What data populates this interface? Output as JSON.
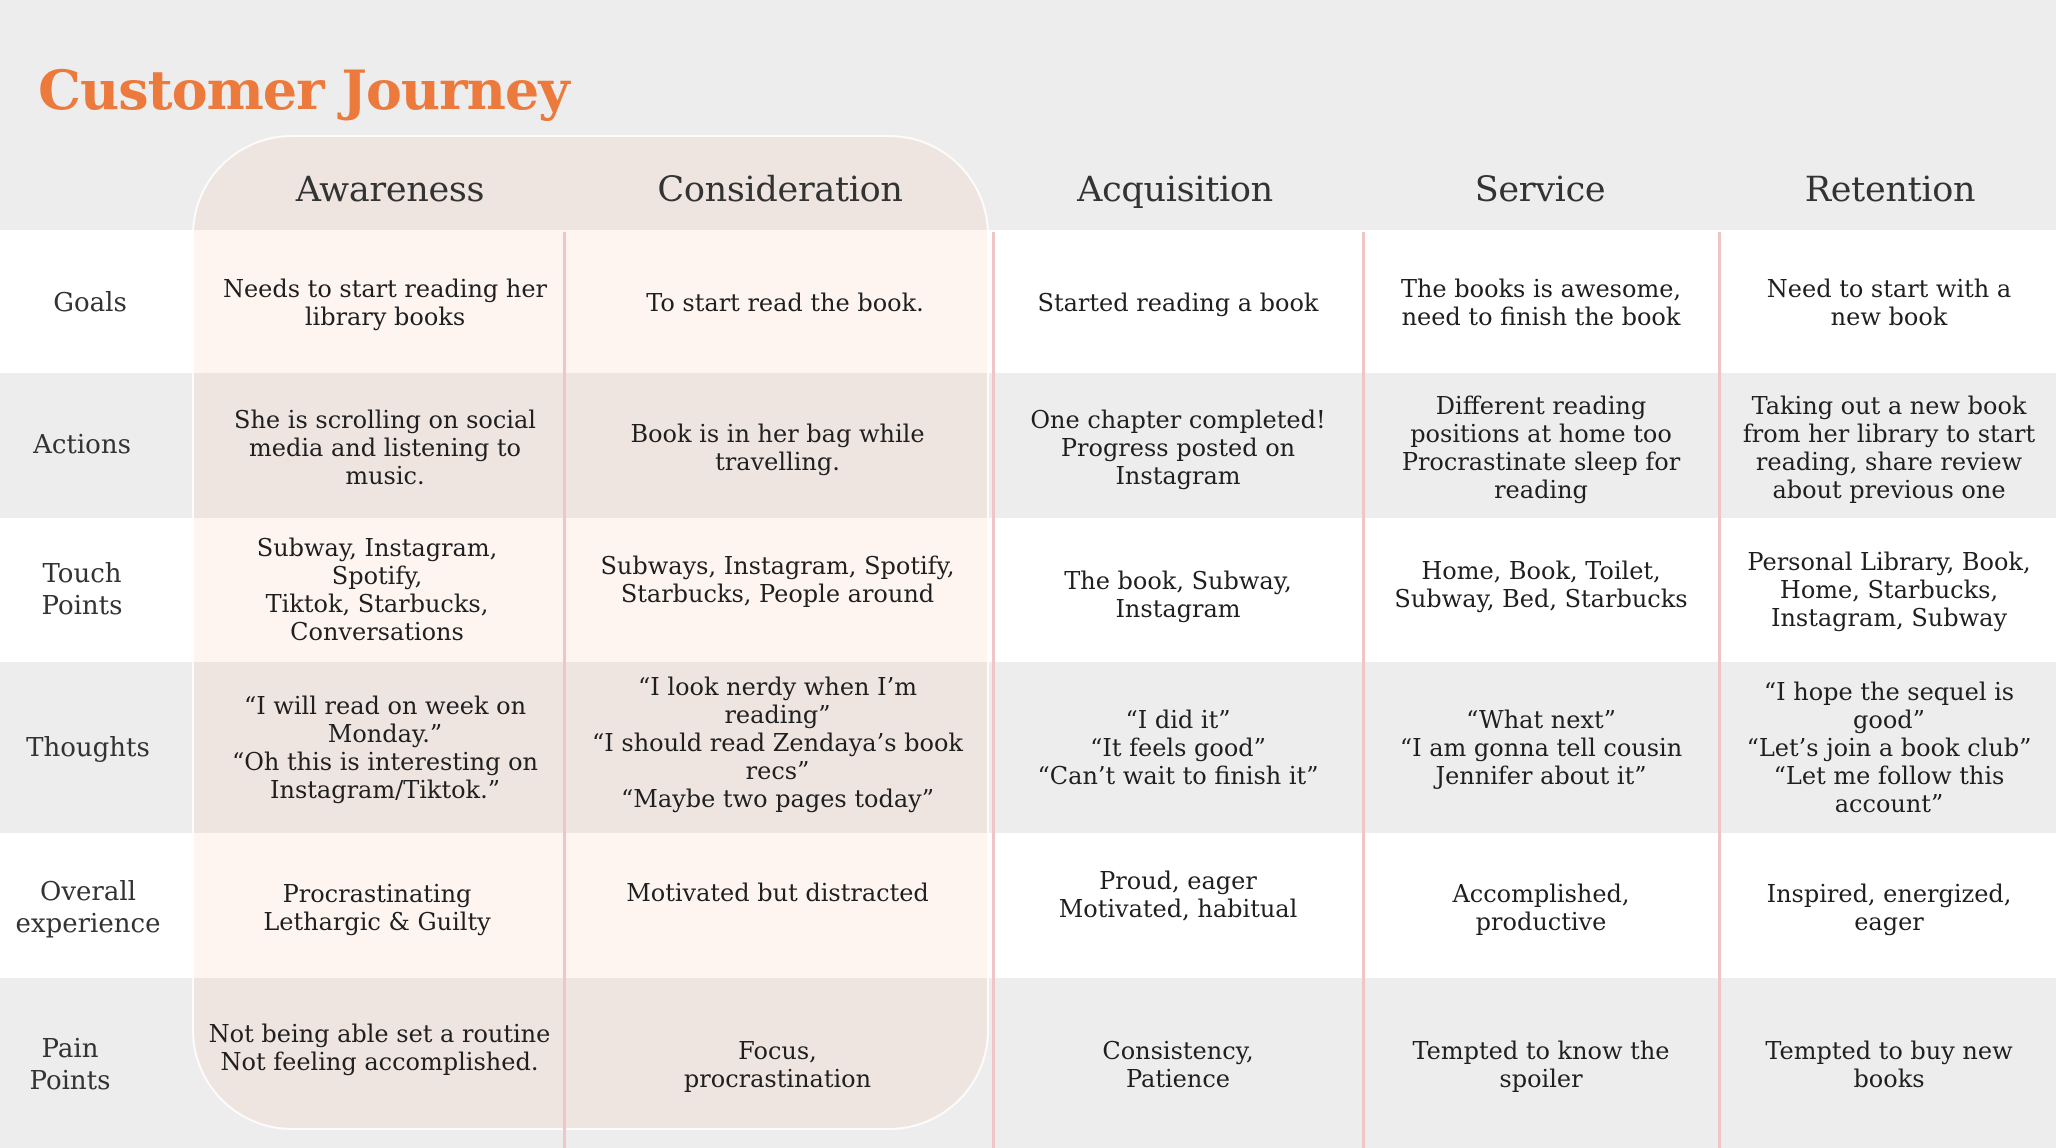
{
  "title": "Customer Journey",
  "columns": [
    "Awareness",
    "Consideration",
    "Acquisition",
    "Service",
    "Retention"
  ],
  "rows": [
    {
      "label": "Goals",
      "cells": [
        "Needs to  start reading her\nlibrary books",
        "To start read the book.",
        "Started reading a book",
        "The books is awesome,\nneed to finish the book",
        "Need to start with a\nnew book"
      ]
    },
    {
      "label": "Actions",
      "cells": [
        "She is scrolling on social\nmedia and listening to\nmusic.",
        "Book is in her bag while\ntravelling.",
        "One chapter completed!\nProgress posted on Instagram",
        "Different reading\npositions at home too\nProcrastinate sleep for\nreading",
        "Taking out a new book\nfrom her library to start\nreading, share review\nabout previous one"
      ]
    },
    {
      "label": "Touch\nPoints",
      "cells": [
        "Subway, Instagram, Spotify,\nTiktok, Starbucks,\nConversations",
        "Subways, Instagram, Spotify,\nStarbucks, People around",
        "The book, Subway,\nInstagram",
        "Home, Book, Toilet,\nSubway, Bed, Starbucks",
        "Personal Library, Book,\nHome, Starbucks,\nInstagram, Subway"
      ]
    },
    {
      "label": "Thoughts",
      "cells": [
        "“I will read on week on\nMonday.”\n“Oh this is interesting on\nInstagram/Tiktok.”",
        "“I look nerdy when I’m reading”\n“I should read Zendaya’s book recs”\n“Maybe two pages today”",
        "“I did it”\n“It feels good”\n“Can’t wait to finish it”",
        "“What next”\n“I am gonna tell cousin\nJennifer about it”",
        "“I hope the sequel is\ngood”\n“Let’s join a book club”\n“Let me follow this\naccount”"
      ]
    },
    {
      "label": "Overall\nexperience",
      "cells": [
        "Procrastinating\nLethargic & Guilty",
        "Motivated but distracted",
        "Proud, eager\nMotivated, habitual",
        "Accomplished,\nproductive",
        "Inspired, energized,\neager"
      ]
    },
    {
      "label": "Pain\nPoints",
      "cells": [
        "Not being able set a routine\nNot feeling accomplished.",
        "Focus,\nprocrastination",
        "Consistency,\nPatience",
        "Tempted to know the\nspoiler",
        "Tempted to buy new\nbooks"
      ]
    }
  ]
}
